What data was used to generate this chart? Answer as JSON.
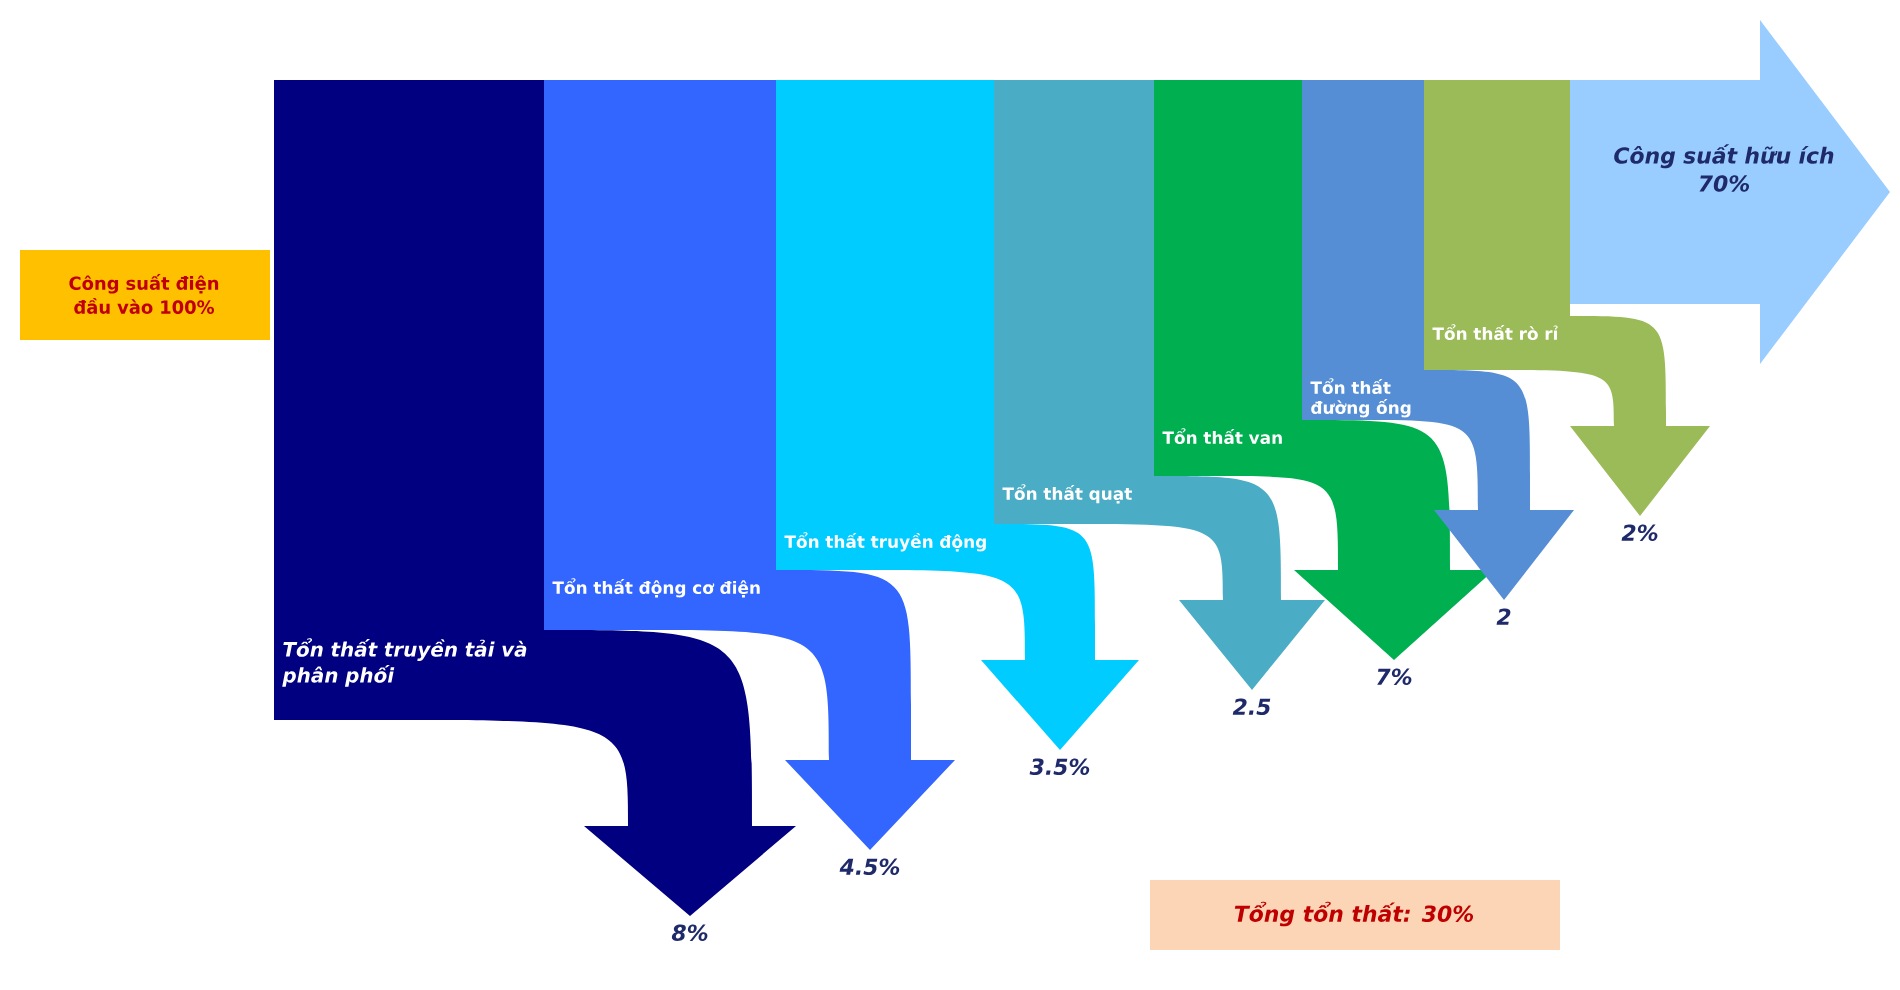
{
  "chart_data": {
    "type": "other",
    "categories": [
      "Tổn thất truyền tải và phân phối",
      "Tổn thất động cơ điện",
      "Tổn thất truyền động",
      "Tổn thất quạt",
      "Tổn thất van",
      "Tổn thất đường ống",
      "Tổn thất rò rỉ",
      "Công suất hữu ích"
    ],
    "values": [
      8,
      4.5,
      3.5,
      2.5,
      7,
      2,
      2,
      70
    ],
    "value_labels": [
      "8%",
      "4.5%",
      "3.5%",
      "2.5",
      "7%",
      "2",
      "2%",
      "70%"
    ],
    "colors": [
      "#000080",
      "#3366ff",
      "#00ccff",
      "#4bacc6",
      "#00b050",
      "#558ed5",
      "#9bbb59",
      "#99ccff"
    ],
    "annotations": [
      "Công suất điện đầu vào 100%",
      "Tổng tổn thất:  30%"
    ]
  }
}
